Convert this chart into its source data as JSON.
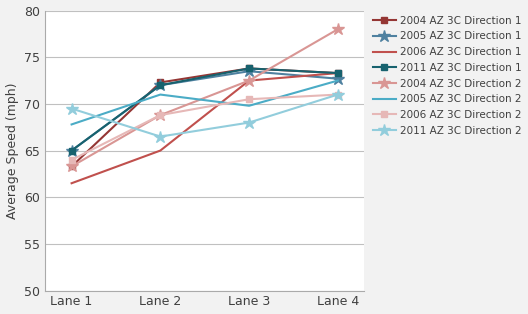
{
  "lanes": [
    1,
    2,
    3,
    4
  ],
  "lane_labels": [
    "Lane 1",
    "Lane 2",
    "Lane 3",
    "Lane 4"
  ],
  "series": [
    {
      "label": "2004 AZ 3C Direction 1",
      "values": [
        63.3,
        72.3,
        73.8,
        73.3
      ],
      "color": "#943634",
      "marker": "s",
      "markersize": 5,
      "linewidth": 1.5
    },
    {
      "label": "2005 AZ 3C Direction 1",
      "values": [
        65.0,
        72.0,
        73.5,
        72.7
      ],
      "color": "#4F81A0",
      "marker": "*",
      "markersize": 9,
      "linewidth": 1.5
    },
    {
      "label": "2006 AZ 3C Direction 1",
      "values": [
        61.5,
        65.0,
        72.5,
        73.3
      ],
      "color": "#C0504D",
      "marker": "None",
      "markersize": 0,
      "linewidth": 1.5
    },
    {
      "label": "2011 AZ 3C Direction 1",
      "values": [
        65.0,
        72.0,
        73.8,
        73.3
      ],
      "color": "#17626E",
      "marker": "s",
      "markersize": 5,
      "linewidth": 1.5
    },
    {
      "label": "2004 AZ 3C Direction 2",
      "values": [
        63.3,
        68.8,
        72.5,
        78.0
      ],
      "color": "#D99694",
      "marker": "*",
      "markersize": 9,
      "linewidth": 1.5
    },
    {
      "label": "2005 AZ 3C Direction 2",
      "values": [
        67.8,
        71.0,
        69.8,
        72.5
      ],
      "color": "#4BACC6",
      "marker": "None",
      "markersize": 0,
      "linewidth": 1.5
    },
    {
      "label": "2006 AZ 3C Direction 2",
      "values": [
        64.0,
        68.8,
        70.5,
        71.0
      ],
      "color": "#E6B8B7",
      "marker": "s",
      "markersize": 5,
      "linewidth": 1.5
    },
    {
      "label": "2011 AZ 3C Direction 2",
      "values": [
        69.5,
        66.5,
        68.0,
        71.0
      ],
      "color": "#92CDDC",
      "marker": "*",
      "markersize": 9,
      "linewidth": 1.5
    }
  ],
  "ylabel": "Average Speed (mph)",
  "ylim": [
    50,
    80
  ],
  "yticks": [
    50,
    55,
    60,
    65,
    70,
    75,
    80
  ],
  "background_color": "#f2f2f2",
  "plot_bg_color": "#ffffff",
  "grid_color": "#c0c0c0",
  "spine_color": "#aaaaaa",
  "tick_fontsize": 9,
  "ylabel_fontsize": 9,
  "legend_fontsize": 7.5
}
